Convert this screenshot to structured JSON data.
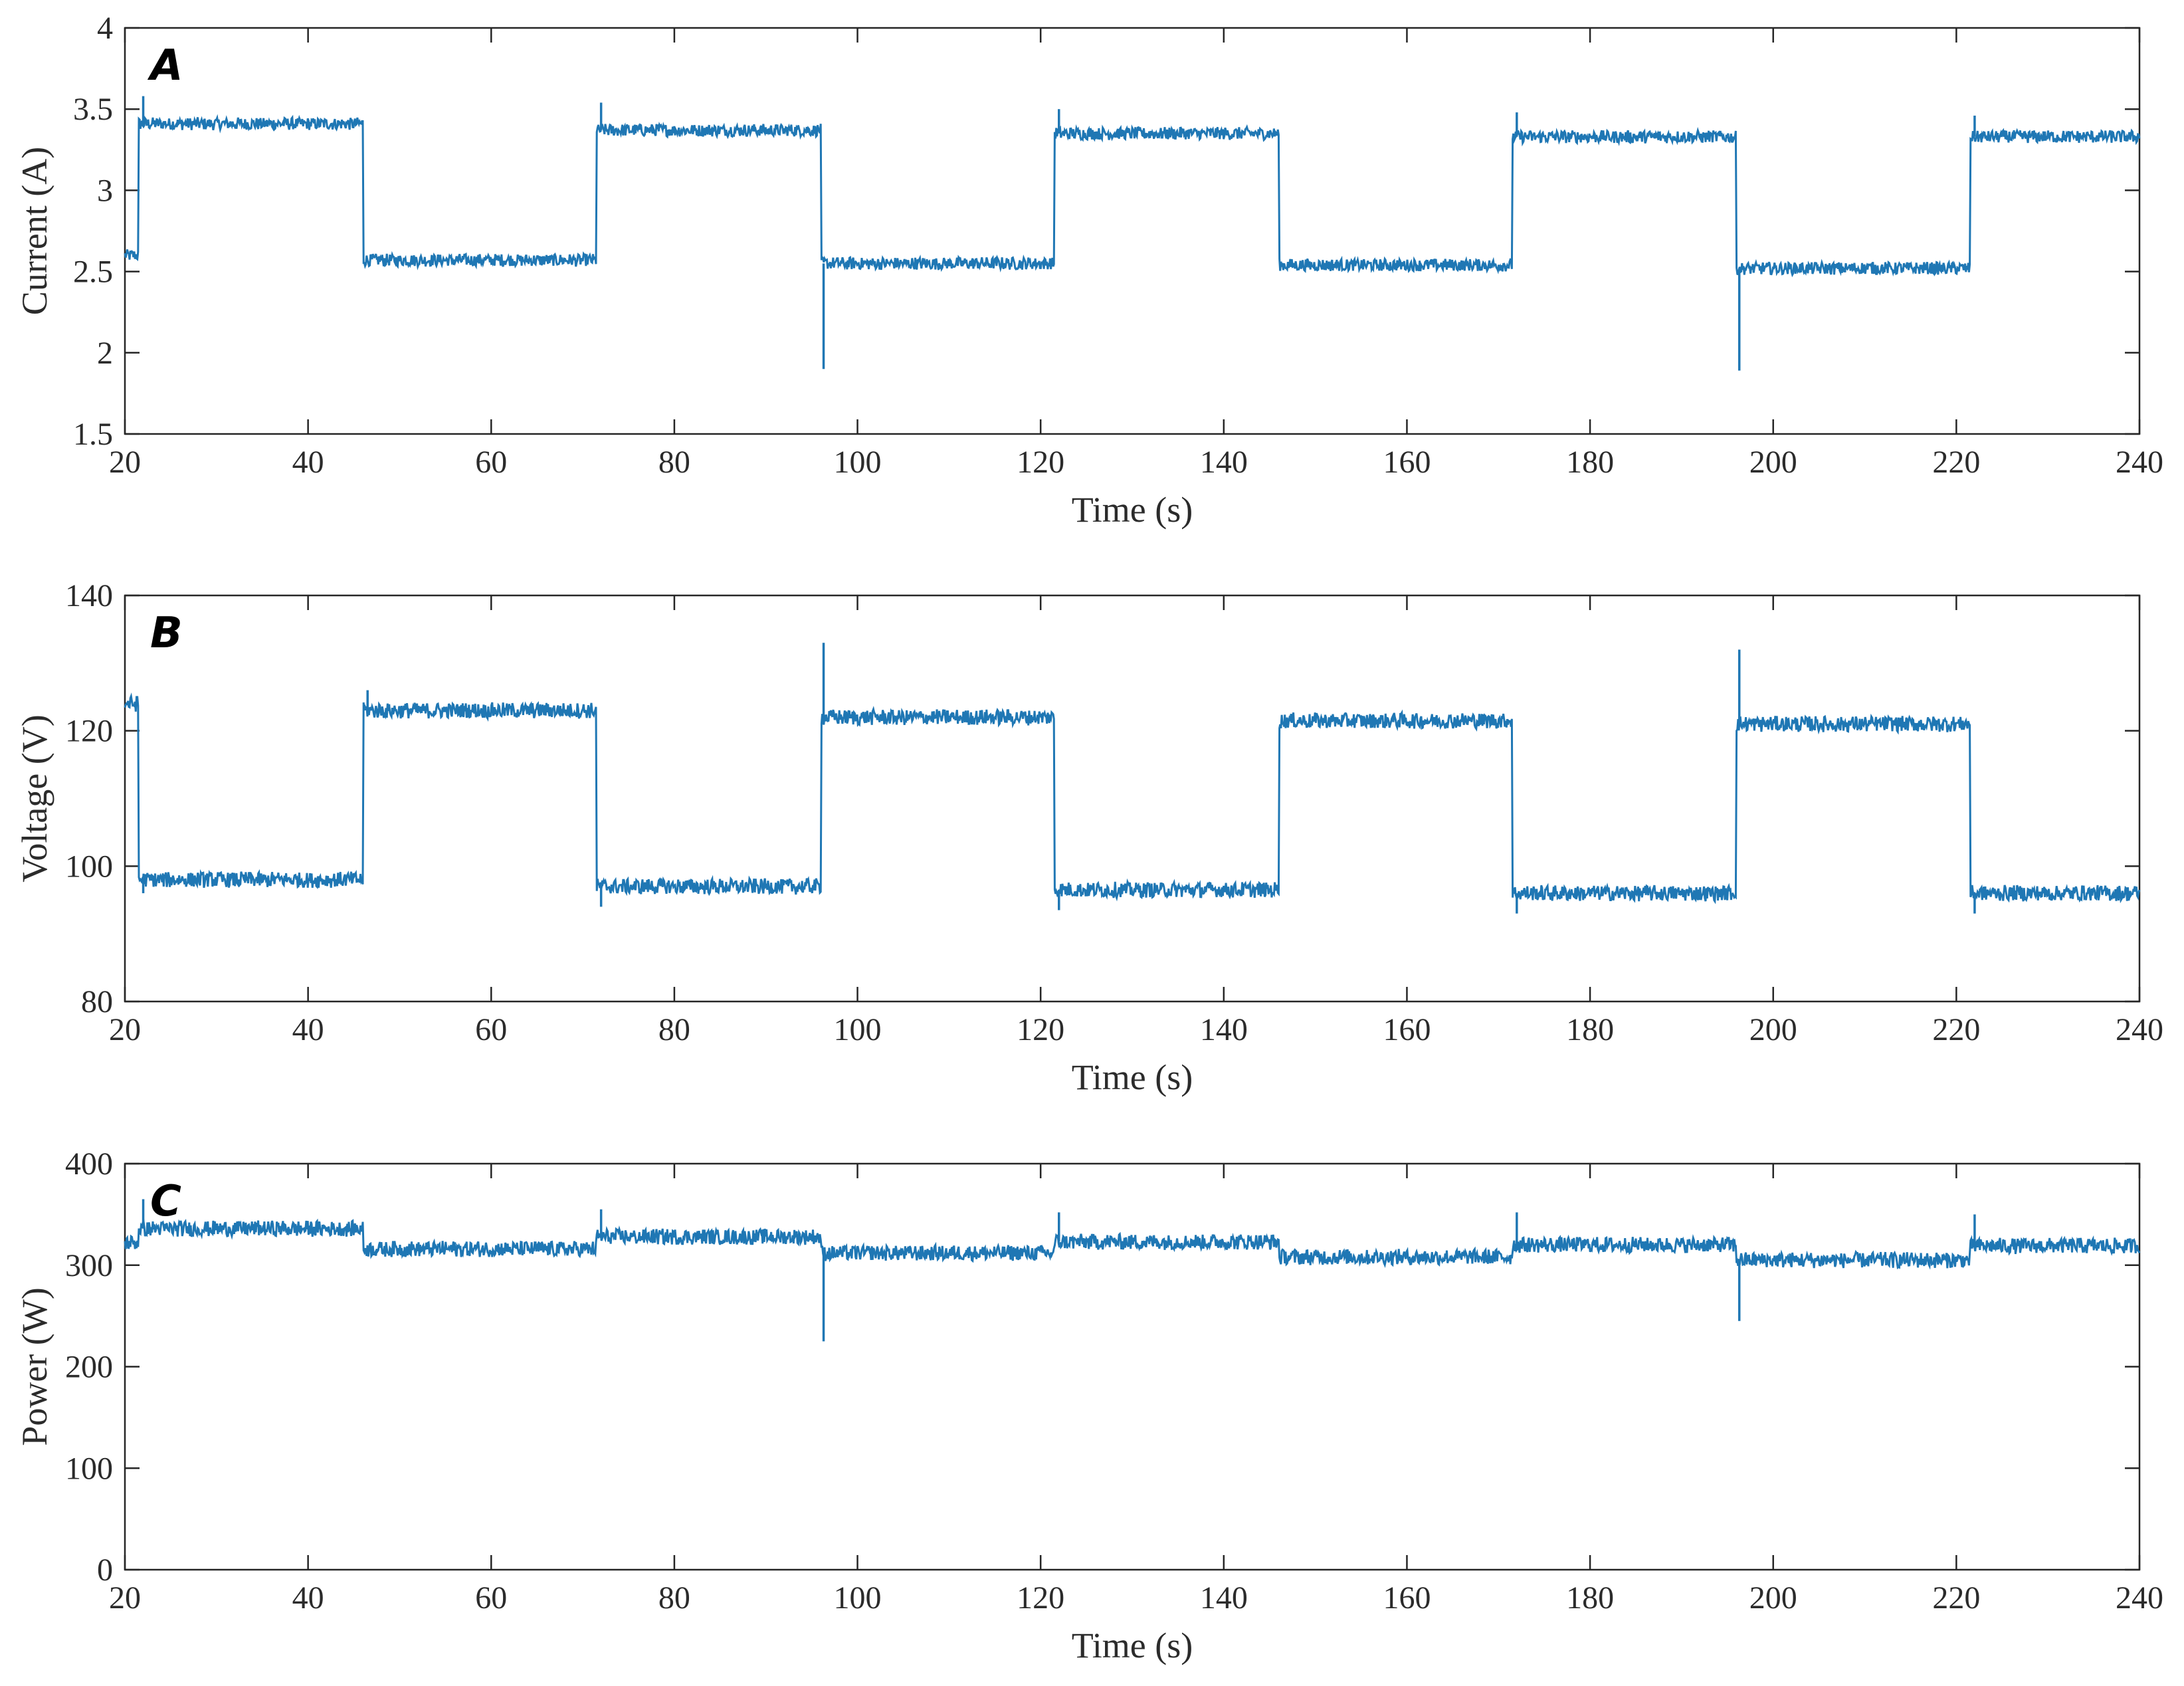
{
  "figure": {
    "series_color": "#1f77b4",
    "axis_color": "#262626",
    "background": "#ffffff"
  },
  "chart_data": [
    {
      "type": "line",
      "panel_label": "A",
      "xlabel": "Time (s)",
      "ylabel": "Current (A)",
      "xlim": [
        20,
        240
      ],
      "ylim": [
        1.5,
        4
      ],
      "xticks": [
        20,
        40,
        60,
        80,
        100,
        120,
        140,
        160,
        180,
        200,
        220,
        240
      ],
      "xtick_labels": [
        "20",
        "40",
        "60",
        "80",
        "100",
        "120",
        "140",
        "160",
        "180",
        "200",
        "220",
        "240"
      ],
      "yticks": [
        1.5,
        2,
        2.5,
        3,
        3.5,
        4
      ],
      "ytick_labels": [
        "1.5",
        "2",
        "2.5",
        "3",
        "3.5",
        "4"
      ],
      "noise_amplitude": 0.04,
      "series": [
        {
          "name": "Current",
          "steps": [
            {
              "t_start": 20,
              "t_end": 21.5,
              "level": 2.6
            },
            {
              "t_start": 21.5,
              "t_end": 46,
              "level": 3.41
            },
            {
              "t_start": 46,
              "t_end": 71.5,
              "level": 2.57
            },
            {
              "t_start": 71.5,
              "t_end": 96,
              "level": 3.37
            },
            {
              "t_start": 96,
              "t_end": 121.5,
              "level": 2.55
            },
            {
              "t_start": 121.5,
              "t_end": 146,
              "level": 3.35
            },
            {
              "t_start": 146,
              "t_end": 171.5,
              "level": 2.54
            },
            {
              "t_start": 171.5,
              "t_end": 196,
              "level": 3.33
            },
            {
              "t_start": 196,
              "t_end": 221.5,
              "level": 2.52
            },
            {
              "t_start": 221.5,
              "t_end": 240,
              "level": 3.33
            }
          ],
          "spikes": [
            {
              "t": 22,
              "value": 3.58
            },
            {
              "t": 72,
              "value": 3.54
            },
            {
              "t": 96.3,
              "value": 1.9
            },
            {
              "t": 122,
              "value": 3.5
            },
            {
              "t": 172,
              "value": 3.48
            },
            {
              "t": 196.3,
              "value": 1.89
            },
            {
              "t": 222,
              "value": 3.46
            }
          ]
        }
      ]
    },
    {
      "type": "line",
      "panel_label": "B",
      "xlabel": "Time (s)",
      "ylabel": "Voltage (V)",
      "xlim": [
        20,
        240
      ],
      "ylim": [
        80,
        140
      ],
      "xticks": [
        20,
        40,
        60,
        80,
        100,
        120,
        140,
        160,
        180,
        200,
        220,
        240
      ],
      "xtick_labels": [
        "20",
        "40",
        "60",
        "80",
        "100",
        "120",
        "140",
        "160",
        "180",
        "200",
        "220",
        "240"
      ],
      "yticks": [
        80,
        100,
        120,
        140
      ],
      "ytick_labels": [
        "80",
        "100",
        "120",
        "140"
      ],
      "noise_amplitude": 1.2,
      "series": [
        {
          "name": "Voltage",
          "steps": [
            {
              "t_start": 20,
              "t_end": 21.5,
              "level": 124
            },
            {
              "t_start": 21.5,
              "t_end": 46,
              "level": 98
            },
            {
              "t_start": 46,
              "t_end": 71.5,
              "level": 123
            },
            {
              "t_start": 71.5,
              "t_end": 96,
              "level": 97
            },
            {
              "t_start": 96,
              "t_end": 121.5,
              "level": 122
            },
            {
              "t_start": 121.5,
              "t_end": 146,
              "level": 96.5
            },
            {
              "t_start": 146,
              "t_end": 171.5,
              "level": 121.5
            },
            {
              "t_start": 171.5,
              "t_end": 196,
              "level": 96
            },
            {
              "t_start": 196,
              "t_end": 221.5,
              "level": 121
            },
            {
              "t_start": 221.5,
              "t_end": 240,
              "level": 96
            }
          ],
          "spikes": [
            {
              "t": 22,
              "value": 96
            },
            {
              "t": 46.5,
              "value": 126
            },
            {
              "t": 72,
              "value": 94
            },
            {
              "t": 96.3,
              "value": 133
            },
            {
              "t": 122,
              "value": 93.5
            },
            {
              "t": 172,
              "value": 93
            },
            {
              "t": 196.3,
              "value": 132
            },
            {
              "t": 222,
              "value": 93
            }
          ]
        }
      ]
    },
    {
      "type": "line",
      "panel_label": "C",
      "xlabel": "Time (s)",
      "ylabel": "Power (W)",
      "xlim": [
        20,
        240
      ],
      "ylim": [
        0,
        400
      ],
      "xticks": [
        20,
        40,
        60,
        80,
        100,
        120,
        140,
        160,
        180,
        200,
        220,
        240
      ],
      "xtick_labels": [
        "20",
        "40",
        "60",
        "80",
        "100",
        "120",
        "140",
        "160",
        "180",
        "200",
        "220",
        "240"
      ],
      "yticks": [
        0,
        100,
        200,
        300,
        400
      ],
      "ytick_labels": [
        "0",
        "100",
        "200",
        "300",
        "400"
      ],
      "noise_amplitude": 8,
      "series": [
        {
          "name": "Power",
          "steps": [
            {
              "t_start": 20,
              "t_end": 21.5,
              "level": 322
            },
            {
              "t_start": 21.5,
              "t_end": 46,
              "level": 336
            },
            {
              "t_start": 46,
              "t_end": 71.5,
              "level": 316
            },
            {
              "t_start": 71.5,
              "t_end": 96,
              "level": 328
            },
            {
              "t_start": 96,
              "t_end": 121.5,
              "level": 312
            },
            {
              "t_start": 121.5,
              "t_end": 146,
              "level": 323
            },
            {
              "t_start": 146,
              "t_end": 171.5,
              "level": 308
            },
            {
              "t_start": 171.5,
              "t_end": 196,
              "level": 320
            },
            {
              "t_start": 196,
              "t_end": 221.5,
              "level": 305
            },
            {
              "t_start": 221.5,
              "t_end": 240,
              "level": 319
            }
          ],
          "spikes": [
            {
              "t": 22,
              "value": 365
            },
            {
              "t": 72,
              "value": 355
            },
            {
              "t": 96.3,
              "value": 225
            },
            {
              "t": 122,
              "value": 352
            },
            {
              "t": 172,
              "value": 352
            },
            {
              "t": 196.3,
              "value": 245
            },
            {
              "t": 222,
              "value": 350
            }
          ]
        }
      ]
    }
  ]
}
